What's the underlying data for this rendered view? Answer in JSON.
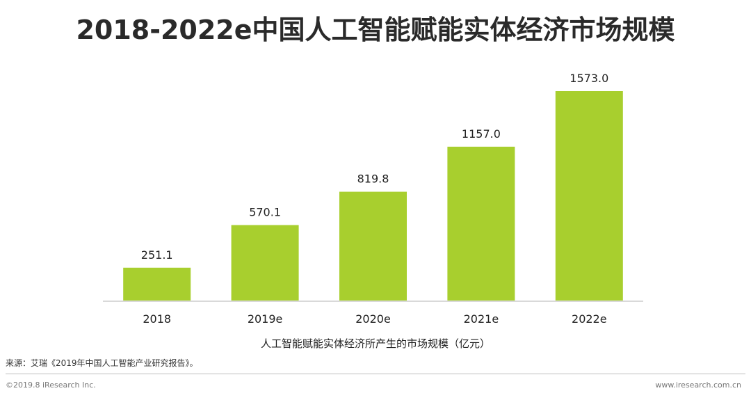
{
  "chart_data": {
    "type": "bar",
    "title": "2018-2022e中国人工智能赋能实体经济市场规模",
    "xlabel": "人工智能赋能实体经济所产生的市场规模（亿元）",
    "ylabel": "",
    "categories": [
      "2018",
      "2019e",
      "2020e",
      "2021e",
      "2022e"
    ],
    "values": [
      251.1,
      570.1,
      819.8,
      1157.0,
      1573.0
    ],
    "value_labels": [
      "251.1",
      "570.1",
      "819.8",
      "1157.0",
      "1573.0"
    ],
    "ylim": [
      0,
      1573.0
    ],
    "grid": false,
    "legend": "none",
    "bar_color": "#a8cf2e",
    "axis_color": "#d9d9d9"
  },
  "footer": {
    "source": "来源：艾瑞《2019年中国人工智能产业研究报告》。",
    "copyright": "©2019.8 iResearch Inc.",
    "site": "www.iresearch.com.cn"
  }
}
